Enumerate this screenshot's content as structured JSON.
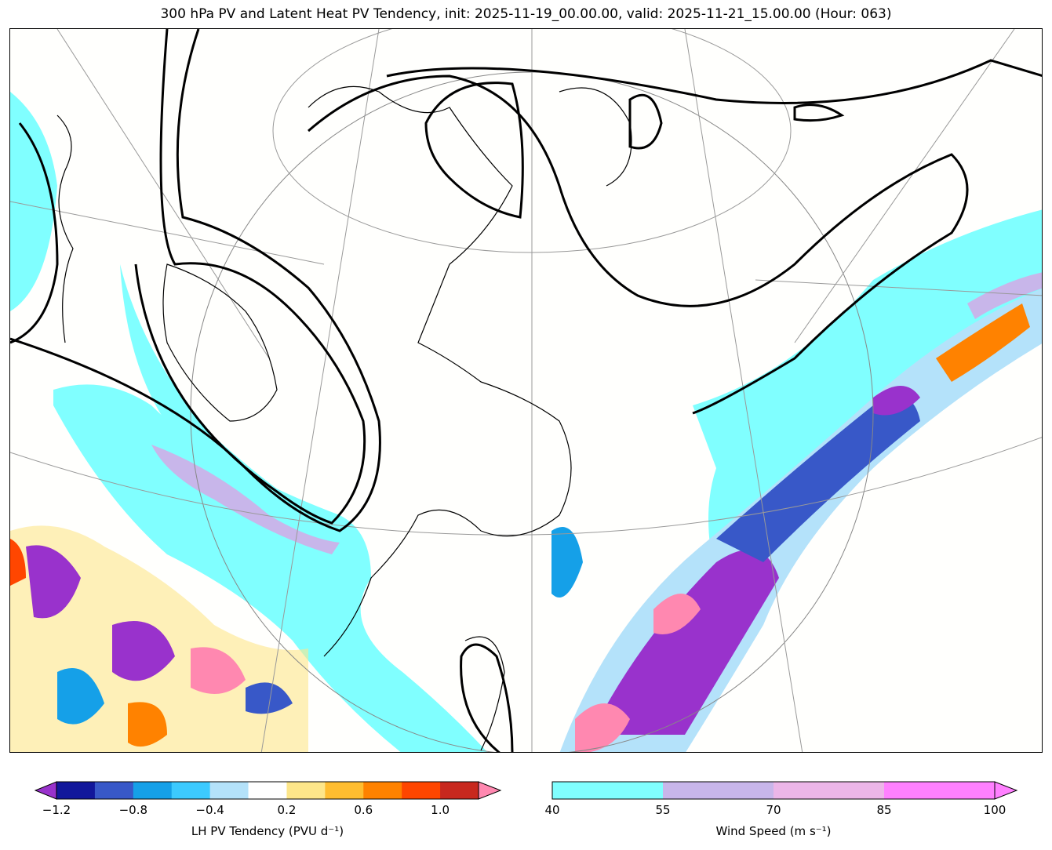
{
  "title": "300 hPa PV and Latent Heat PV Tendency, init: 2025-11-19_00.00.00, valid: 2025-11-21_15.00.00 (Hour: 063)",
  "colorbar_pv": {
    "label": "LH PV Tendency (PVU d⁻¹)",
    "boundaries": [
      -1.2,
      -1.0,
      -0.8,
      -0.6,
      -0.4,
      -0.2,
      0.2,
      0.4,
      0.6,
      0.8,
      1.0,
      1.2
    ],
    "colors": [
      "#12179b",
      "#3858c8",
      "#15a0e8",
      "#3ccaff",
      "#b4e2fa",
      "#ffffff",
      "#fde68a",
      "#ffbd30",
      "#ff8200",
      "#ff4600",
      "#c8281e"
    ],
    "extend_min_color": "#9932cc",
    "extend_max_color": "#ff88b0",
    "ticks": [
      "−1.2",
      "−0.8",
      "−0.4",
      "0.2",
      "0.6",
      "1.0"
    ]
  },
  "colorbar_wind": {
    "label": "Wind Speed (m s⁻¹)",
    "boundaries": [
      40,
      55,
      70,
      85,
      100
    ],
    "colors": [
      "#80ffff",
      "#c8b6ea",
      "#ecb6e8",
      "#ff80ff"
    ],
    "extend_max_color": "#ff80ff",
    "ticks": [
      "40",
      "55",
      "70",
      "85",
      "100"
    ]
  }
}
